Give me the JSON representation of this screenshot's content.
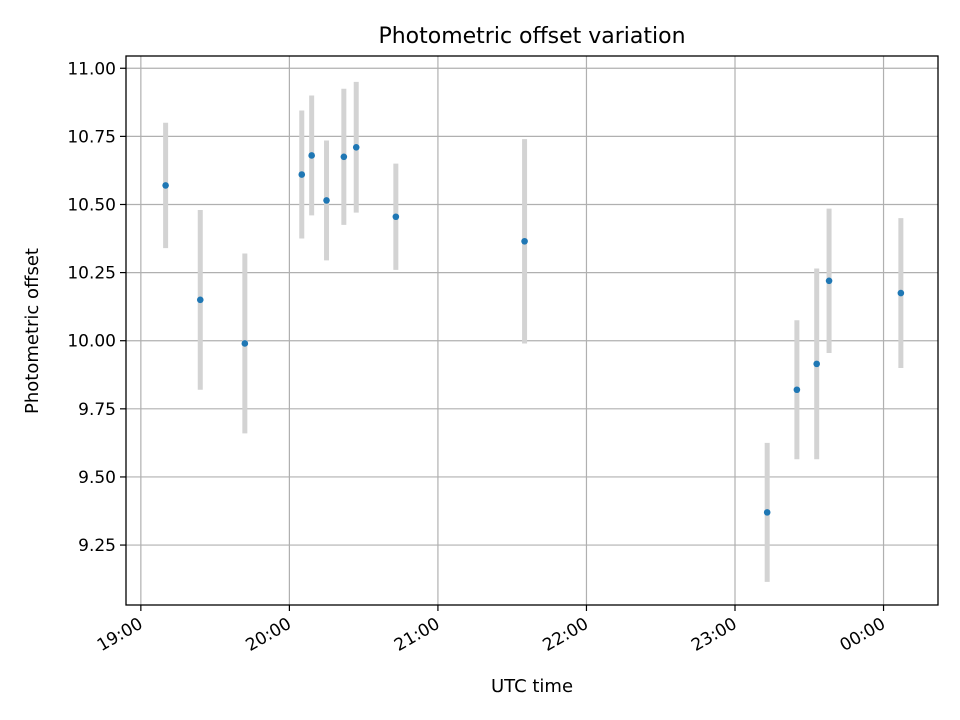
{
  "chart_data": {
    "type": "scatter",
    "title": "Photometric offset variation",
    "xlabel": "UTC time",
    "ylabel": "Photometric offset",
    "x_axis": {
      "type": "time",
      "range": [
        "18:54",
        "00:22 (+1 day)"
      ],
      "ticks": [
        "19:00",
        "20:00",
        "21:00",
        "22:00",
        "23:00",
        "00:00"
      ]
    },
    "ylim": [
      9.03,
      11.045
    ],
    "yticks": [
      "9.25",
      "9.50",
      "9.75",
      "10.00",
      "10.25",
      "10.50",
      "10.75",
      "11.00"
    ],
    "grid": true,
    "legend": "none",
    "marker_color": "#1f77b4",
    "errorbar_color": "#d3d3d3",
    "points": [
      {
        "x": "19:10",
        "y": 10.57,
        "err": 0.23
      },
      {
        "x": "19:24",
        "y": 10.15,
        "err": 0.33
      },
      {
        "x": "19:42",
        "y": 9.99,
        "err": 0.33
      },
      {
        "x": "20:05",
        "y": 10.61,
        "err": 0.235
      },
      {
        "x": "20:09",
        "y": 10.68,
        "err": 0.22
      },
      {
        "x": "20:15",
        "y": 10.515,
        "err": 0.22
      },
      {
        "x": "20:22",
        "y": 10.675,
        "err": 0.25
      },
      {
        "x": "20:27",
        "y": 10.71,
        "err": 0.24
      },
      {
        "x": "20:43",
        "y": 10.455,
        "err": 0.195
      },
      {
        "x": "21:35",
        "y": 10.365,
        "err": 0.375
      },
      {
        "x": "23:13",
        "y": 9.37,
        "err": 0.255
      },
      {
        "x": "23:25",
        "y": 9.82,
        "err": 0.255
      },
      {
        "x": "23:33",
        "y": 9.915,
        "err": 0.35
      },
      {
        "x": "23:38",
        "y": 10.22,
        "err": 0.265
      },
      {
        "x": "00:07",
        "y": 10.175,
        "err": 0.275
      }
    ]
  }
}
